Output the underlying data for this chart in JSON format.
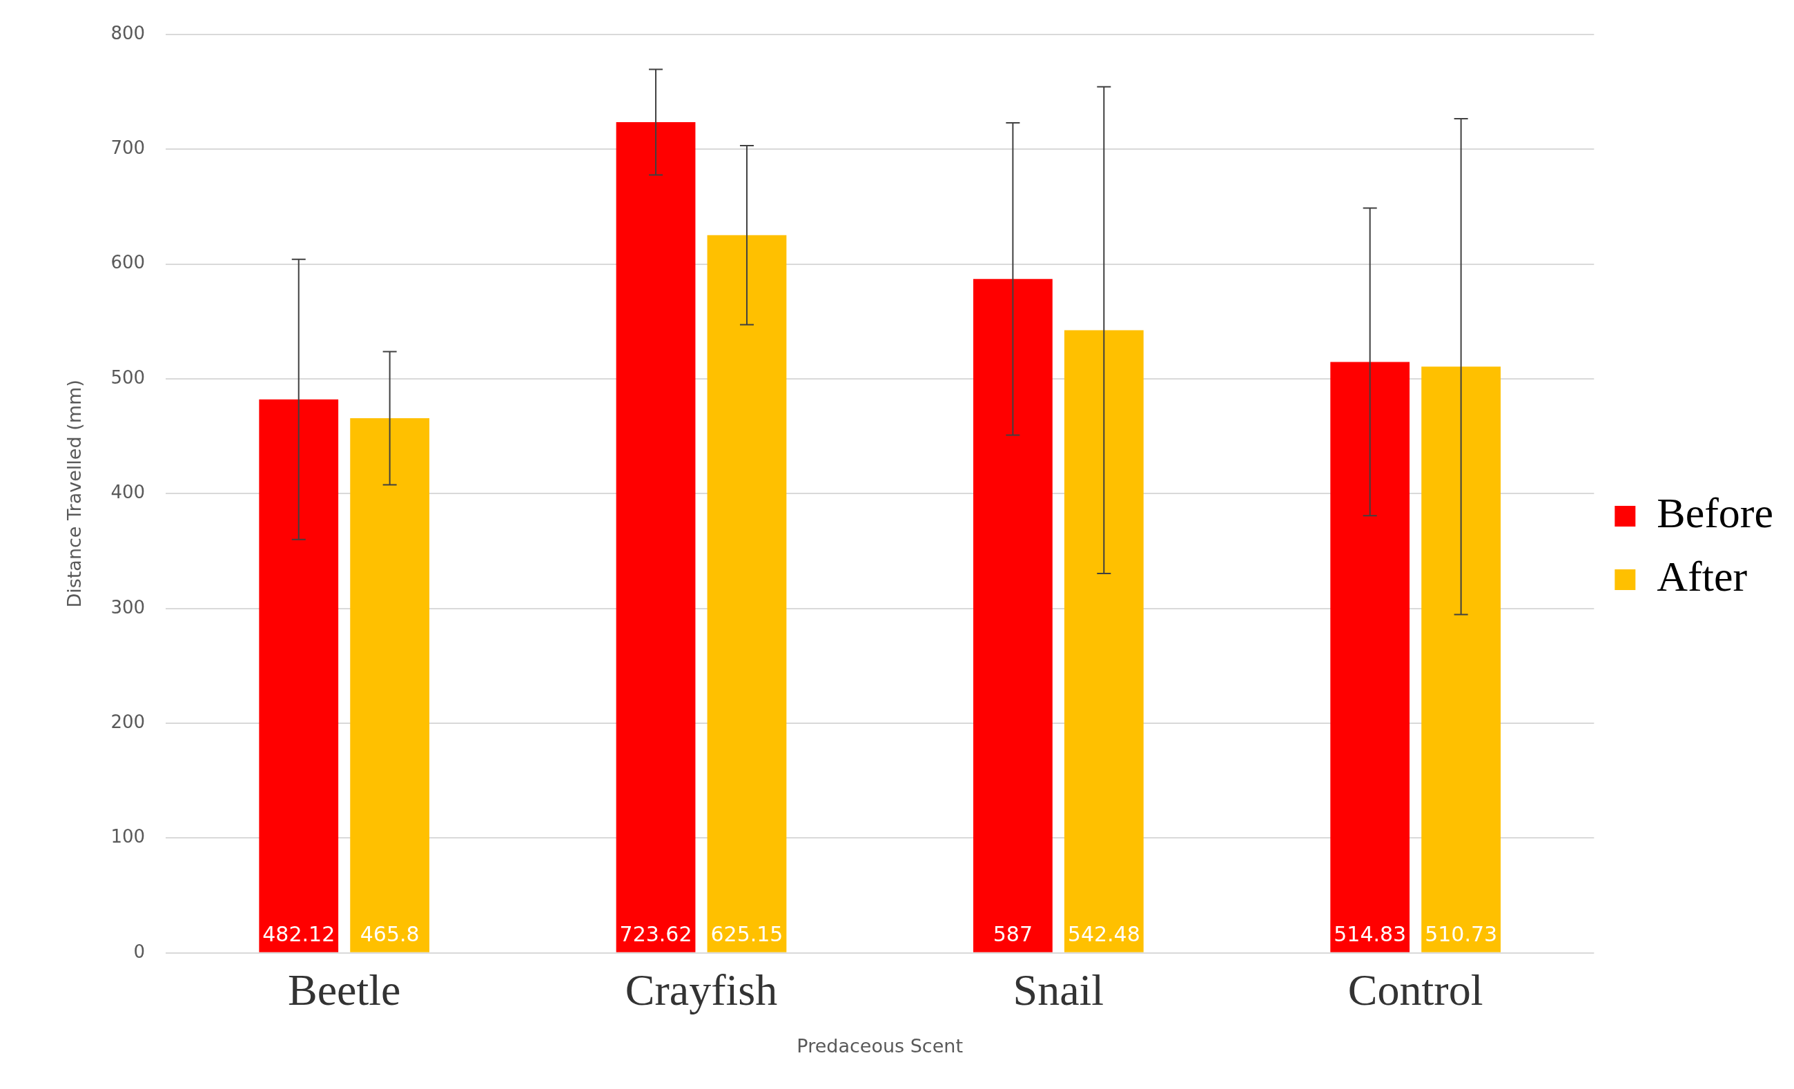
{
  "chart_data": {
    "type": "bar",
    "xlabel": "Predaceous Scent",
    "ylabel": "Distance Travelled (mm)",
    "categories": [
      "Beetle",
      "Crayfish",
      "Snail",
      "Control"
    ],
    "series": [
      {
        "name": "Before",
        "color": "#ff0000",
        "values": [
          482.12,
          723.62,
          587,
          514.83
        ],
        "errors": [
          122,
          46,
          136,
          134
        ]
      },
      {
        "name": "After",
        "color": "#ffc000",
        "values": [
          465.8,
          625.15,
          542.48,
          510.73
        ],
        "errors": [
          58,
          78,
          212,
          216
        ]
      }
    ],
    "ylim": [
      0,
      800
    ],
    "yticks": [
      0,
      100,
      200,
      300,
      400,
      500,
      600,
      700,
      800
    ],
    "grid": "y",
    "legend": "right",
    "data_labels": true
  }
}
